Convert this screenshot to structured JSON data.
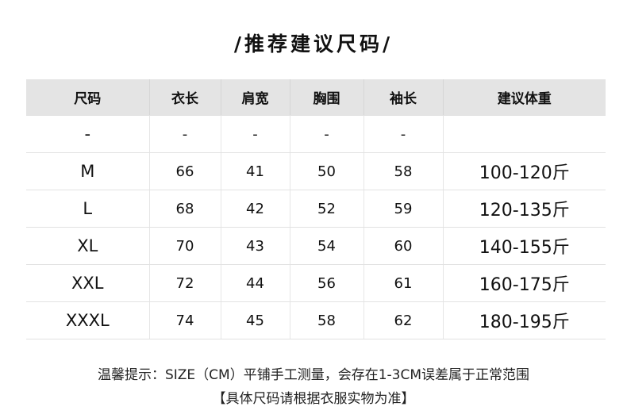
{
  "title": "/推荐建议尺码/",
  "table": {
    "headers": [
      "尺码",
      "衣长",
      "肩宽",
      "胸围",
      "袖长",
      "建议体重"
    ],
    "rows": [
      [
        "-",
        "-",
        "-",
        "-",
        "-",
        ""
      ],
      [
        "M",
        "66",
        "41",
        "50",
        "58",
        "100-120斤"
      ],
      [
        "L",
        "68",
        "42",
        "52",
        "59",
        "120-135斤"
      ],
      [
        "XL",
        "70",
        "43",
        "54",
        "60",
        "140-155斤"
      ],
      [
        "XXL",
        "72",
        "44",
        "56",
        "61",
        "160-175斤"
      ],
      [
        "XXXL",
        "74",
        "45",
        "58",
        "62",
        "180-195斤"
      ]
    ]
  },
  "notes": {
    "line1": "温馨提示：SIZE（CM）平铺手工测量，会存在1-3CM误差属于正常范围",
    "line2": "【具体尺码请根据衣服实物为准】"
  }
}
